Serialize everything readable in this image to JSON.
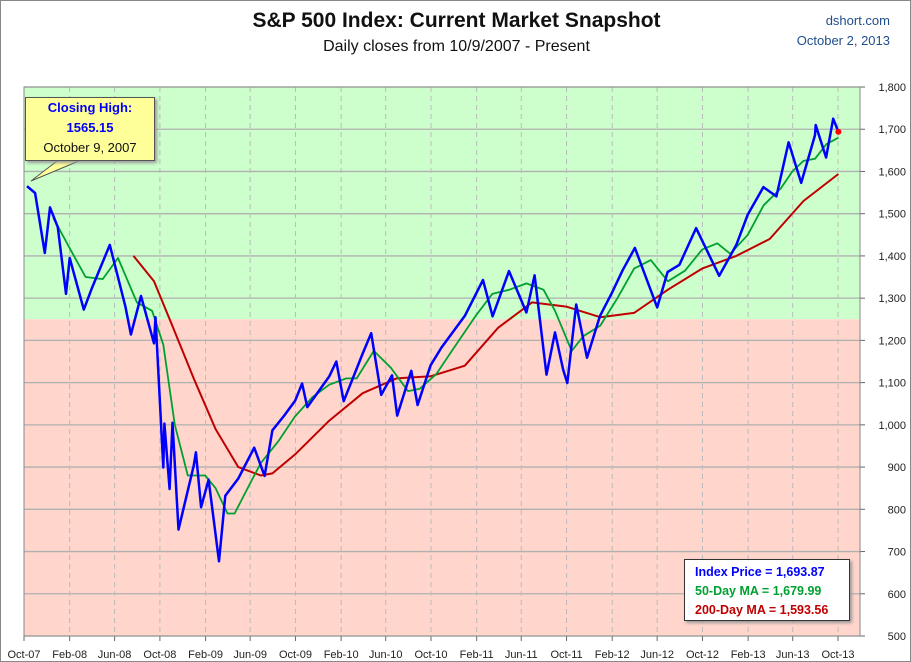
{
  "header": {
    "title": "S&P 500 Index: Current Market Snapshot",
    "subtitle": "Daily closes from 10/9/2007 - Present",
    "source": "dshort.com",
    "date": "October 2, 2013"
  },
  "callout": {
    "line1": "Closing High:",
    "line2": "1565.15",
    "line3": "October 9, 2007"
  },
  "legend": {
    "index": "Index Price =  1,693.87",
    "ma50": "50-Day MA = 1,679.99",
    "ma200": "200-Day MA = 1,593.56"
  },
  "colors": {
    "index": "#0000ff",
    "ma50": "#00a030",
    "ma200": "#c00000",
    "above_zone": "#ccffcc",
    "below_zone": "#ffd5cc",
    "last_point": "#ff0000"
  },
  "chart_data": {
    "type": "line",
    "title": "S&P 500 Index: Current Market Snapshot",
    "ylim": [
      500,
      1800
    ],
    "yticks": [
      500,
      600,
      700,
      800,
      900,
      1000,
      1100,
      1200,
      1300,
      1400,
      1500,
      1600,
      1700,
      1800
    ],
    "ytick_labels": [
      "500",
      "600",
      "700",
      "800",
      "900",
      "1,000",
      "1,100",
      "1,200",
      "1,300",
      "1,400",
      "1,500",
      "1,600",
      "1,700",
      "1,800"
    ],
    "xticks": [
      "2007-10-01",
      "2008-02-01",
      "2008-06-01",
      "2008-10-01",
      "2009-02-01",
      "2009-06-01",
      "2009-10-01",
      "2010-02-01",
      "2010-06-01",
      "2010-10-01",
      "2011-02-01",
      "2011-06-01",
      "2011-10-01",
      "2012-02-01",
      "2012-06-01",
      "2012-10-01",
      "2013-02-01",
      "2013-06-01",
      "2013-10-01"
    ],
    "xtick_labels": [
      "Oct-07",
      "Feb-08",
      "Jun-08",
      "Oct-08",
      "Feb-09",
      "Jun-09",
      "Oct-09",
      "Feb-10",
      "Jun-10",
      "Oct-10",
      "Feb-11",
      "Jun-11",
      "Oct-11",
      "Feb-12",
      "Jun-12",
      "Oct-12",
      "Feb-13",
      "Jun-13",
      "Oct-13"
    ],
    "zone_threshold": 1250,
    "grid": true,
    "series": [
      {
        "name": "Index Price",
        "points": [
          [
            "2007-10-09",
            1565
          ],
          [
            "2007-10-31",
            1549
          ],
          [
            "2007-11-26",
            1407
          ],
          [
            "2007-12-10",
            1515
          ],
          [
            "2007-12-31",
            1468
          ],
          [
            "2008-01-22",
            1310
          ],
          [
            "2008-02-01",
            1395
          ],
          [
            "2008-03-10",
            1273
          ],
          [
            "2008-03-31",
            1322
          ],
          [
            "2008-05-19",
            1426
          ],
          [
            "2008-06-30",
            1280
          ],
          [
            "2008-07-15",
            1214
          ],
          [
            "2008-08-11",
            1305
          ],
          [
            "2008-09-15",
            1193
          ],
          [
            "2008-09-19",
            1255
          ],
          [
            "2008-10-10",
            899
          ],
          [
            "2008-10-13",
            1003
          ],
          [
            "2008-10-27",
            848
          ],
          [
            "2008-11-04",
            1005
          ],
          [
            "2008-11-20",
            752
          ],
          [
            "2008-12-31",
            903
          ],
          [
            "2009-01-06",
            935
          ],
          [
            "2009-01-20",
            805
          ],
          [
            "2009-02-09",
            870
          ],
          [
            "2009-03-09",
            677
          ],
          [
            "2009-03-26",
            832
          ],
          [
            "2009-04-30",
            873
          ],
          [
            "2009-06-12",
            946
          ],
          [
            "2009-07-10",
            879
          ],
          [
            "2009-07-31",
            987
          ],
          [
            "2009-08-31",
            1021
          ],
          [
            "2009-09-30",
            1057
          ],
          [
            "2009-10-19",
            1098
          ],
          [
            "2009-11-02",
            1042
          ],
          [
            "2009-12-31",
            1115
          ],
          [
            "2010-01-19",
            1150
          ],
          [
            "2010-02-08",
            1056
          ],
          [
            "2010-03-31",
            1169
          ],
          [
            "2010-04-23",
            1217
          ],
          [
            "2010-05-20",
            1071
          ],
          [
            "2010-06-18",
            1117
          ],
          [
            "2010-07-02",
            1022
          ],
          [
            "2010-08-09",
            1128
          ],
          [
            "2010-08-26",
            1047
          ],
          [
            "2010-09-30",
            1141
          ],
          [
            "2010-10-29",
            1183
          ],
          [
            "2010-12-31",
            1258
          ],
          [
            "2011-02-18",
            1343
          ],
          [
            "2011-03-16",
            1257
          ],
          [
            "2011-04-29",
            1364
          ],
          [
            "2011-06-15",
            1266
          ],
          [
            "2011-07-07",
            1354
          ],
          [
            "2011-08-08",
            1119
          ],
          [
            "2011-08-31",
            1219
          ],
          [
            "2011-09-22",
            1130
          ],
          [
            "2011-10-03",
            1099
          ],
          [
            "2011-10-27",
            1285
          ],
          [
            "2011-11-25",
            1159
          ],
          [
            "2011-12-30",
            1258
          ],
          [
            "2012-01-31",
            1312
          ],
          [
            "2012-02-29",
            1366
          ],
          [
            "2012-04-02",
            1419
          ],
          [
            "2012-06-01",
            1278
          ],
          [
            "2012-06-29",
            1362
          ],
          [
            "2012-07-31",
            1379
          ],
          [
            "2012-09-14",
            1466
          ],
          [
            "2012-11-15",
            1353
          ],
          [
            "2012-12-31",
            1426
          ],
          [
            "2013-01-31",
            1498
          ],
          [
            "2013-03-14",
            1563
          ],
          [
            "2013-04-18",
            1541
          ],
          [
            "2013-05-21",
            1669
          ],
          [
            "2013-06-24",
            1573
          ],
          [
            "2013-07-31",
            1686
          ],
          [
            "2013-08-02",
            1710
          ],
          [
            "2013-08-30",
            1633
          ],
          [
            "2013-09-18",
            1725
          ],
          [
            "2013-10-02",
            1694
          ]
        ]
      },
      {
        "name": "50-Day MA",
        "points": [
          [
            "2007-12-19",
            1490
          ],
          [
            "2008-01-31",
            1420
          ],
          [
            "2008-03-15",
            1350
          ],
          [
            "2008-04-30",
            1345
          ],
          [
            "2008-06-10",
            1395
          ],
          [
            "2008-07-31",
            1290
          ],
          [
            "2008-09-10",
            1270
          ],
          [
            "2008-10-10",
            1190
          ],
          [
            "2008-11-10",
            1000
          ],
          [
            "2008-12-15",
            880
          ],
          [
            "2009-01-31",
            880
          ],
          [
            "2009-02-28",
            850
          ],
          [
            "2009-04-01",
            790
          ],
          [
            "2009-04-20",
            790
          ],
          [
            "2009-05-31",
            860
          ],
          [
            "2009-06-30",
            910
          ],
          [
            "2009-08-15",
            960
          ],
          [
            "2009-09-30",
            1020
          ],
          [
            "2009-11-15",
            1065
          ],
          [
            "2009-12-31",
            1095
          ],
          [
            "2010-02-15",
            1110
          ],
          [
            "2010-03-15",
            1110
          ],
          [
            "2010-04-30",
            1175
          ],
          [
            "2010-06-15",
            1135
          ],
          [
            "2010-07-31",
            1080
          ],
          [
            "2010-08-31",
            1085
          ],
          [
            "2010-10-15",
            1120
          ],
          [
            "2010-11-30",
            1180
          ],
          [
            "2011-01-31",
            1260
          ],
          [
            "2011-03-15",
            1310
          ],
          [
            "2011-04-30",
            1320
          ],
          [
            "2011-06-15",
            1335
          ],
          [
            "2011-07-31",
            1320
          ],
          [
            "2011-08-31",
            1270
          ],
          [
            "2011-10-15",
            1175
          ],
          [
            "2011-11-15",
            1210
          ],
          [
            "2011-12-31",
            1235
          ],
          [
            "2012-02-15",
            1300
          ],
          [
            "2012-03-31",
            1370
          ],
          [
            "2012-05-15",
            1390
          ],
          [
            "2012-06-30",
            1340
          ],
          [
            "2012-08-15",
            1365
          ],
          [
            "2012-09-30",
            1415
          ],
          [
            "2012-11-10",
            1430
          ],
          [
            "2012-12-15",
            1405
          ],
          [
            "2013-01-31",
            1450
          ],
          [
            "2013-03-15",
            1520
          ],
          [
            "2013-04-30",
            1560
          ],
          [
            "2013-05-31",
            1600
          ],
          [
            "2013-06-30",
            1625
          ],
          [
            "2013-07-31",
            1630
          ],
          [
            "2013-08-31",
            1665
          ],
          [
            "2013-10-02",
            1680
          ]
        ]
      },
      {
        "name": "200-Day MA",
        "points": [
          [
            "2008-07-22",
            1400
          ],
          [
            "2008-09-15",
            1340
          ],
          [
            "2008-11-01",
            1240
          ],
          [
            "2008-12-31",
            1110
          ],
          [
            "2009-02-28",
            990
          ],
          [
            "2009-04-30",
            900
          ],
          [
            "2009-06-30",
            880
          ],
          [
            "2009-07-31",
            885
          ],
          [
            "2009-09-30",
            930
          ],
          [
            "2009-12-31",
            1010
          ],
          [
            "2010-03-31",
            1075
          ],
          [
            "2010-06-30",
            1110
          ],
          [
            "2010-09-30",
            1115
          ],
          [
            "2010-12-31",
            1140
          ],
          [
            "2011-03-31",
            1230
          ],
          [
            "2011-06-30",
            1290
          ],
          [
            "2011-09-30",
            1280
          ],
          [
            "2011-12-31",
            1255
          ],
          [
            "2012-03-31",
            1265
          ],
          [
            "2012-06-30",
            1320
          ],
          [
            "2012-09-30",
            1370
          ],
          [
            "2012-12-31",
            1400
          ],
          [
            "2013-03-31",
            1440
          ],
          [
            "2013-06-30",
            1530
          ],
          [
            "2013-10-02",
            1594
          ]
        ]
      }
    ]
  }
}
